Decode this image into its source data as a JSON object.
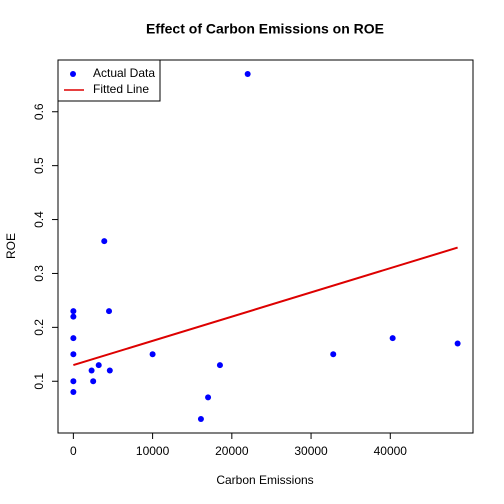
{
  "chart_data": {
    "type": "scatter",
    "title": "Effect of Carbon Emissions on ROE",
    "x_label": "Carbon Emissions",
    "y_label": "ROE",
    "xlim": [
      -1940,
      50440
    ],
    "ylim": [
      0.004,
      0.696
    ],
    "xticks": [
      0,
      10000,
      20000,
      30000,
      40000
    ],
    "yticks": [
      0.1,
      0.2,
      0.3,
      0.4,
      0.5,
      0.6
    ],
    "legend": "top-left",
    "series": [
      {
        "name": "Actual Data",
        "type": "scatter",
        "color": "#0000ff",
        "x": [
          0,
          0,
          0,
          0,
          0,
          0,
          2300,
          2500,
          3200,
          3900,
          4500,
          4600,
          10000,
          16100,
          17000,
          18500,
          22000,
          32800,
          40300,
          48500
        ],
        "values": [
          0.08,
          0.1,
          0.15,
          0.18,
          0.22,
          0.23,
          0.12,
          0.1,
          0.13,
          0.36,
          0.23,
          0.12,
          0.15,
          0.03,
          0.07,
          0.13,
          0.67,
          0.15,
          0.18,
          0.17
        ]
      },
      {
        "name": "Fitted Line",
        "type": "line",
        "color": "#dd0000",
        "x": [
          0,
          48500
        ],
        "values": [
          0.13,
          0.348
        ]
      }
    ]
  }
}
